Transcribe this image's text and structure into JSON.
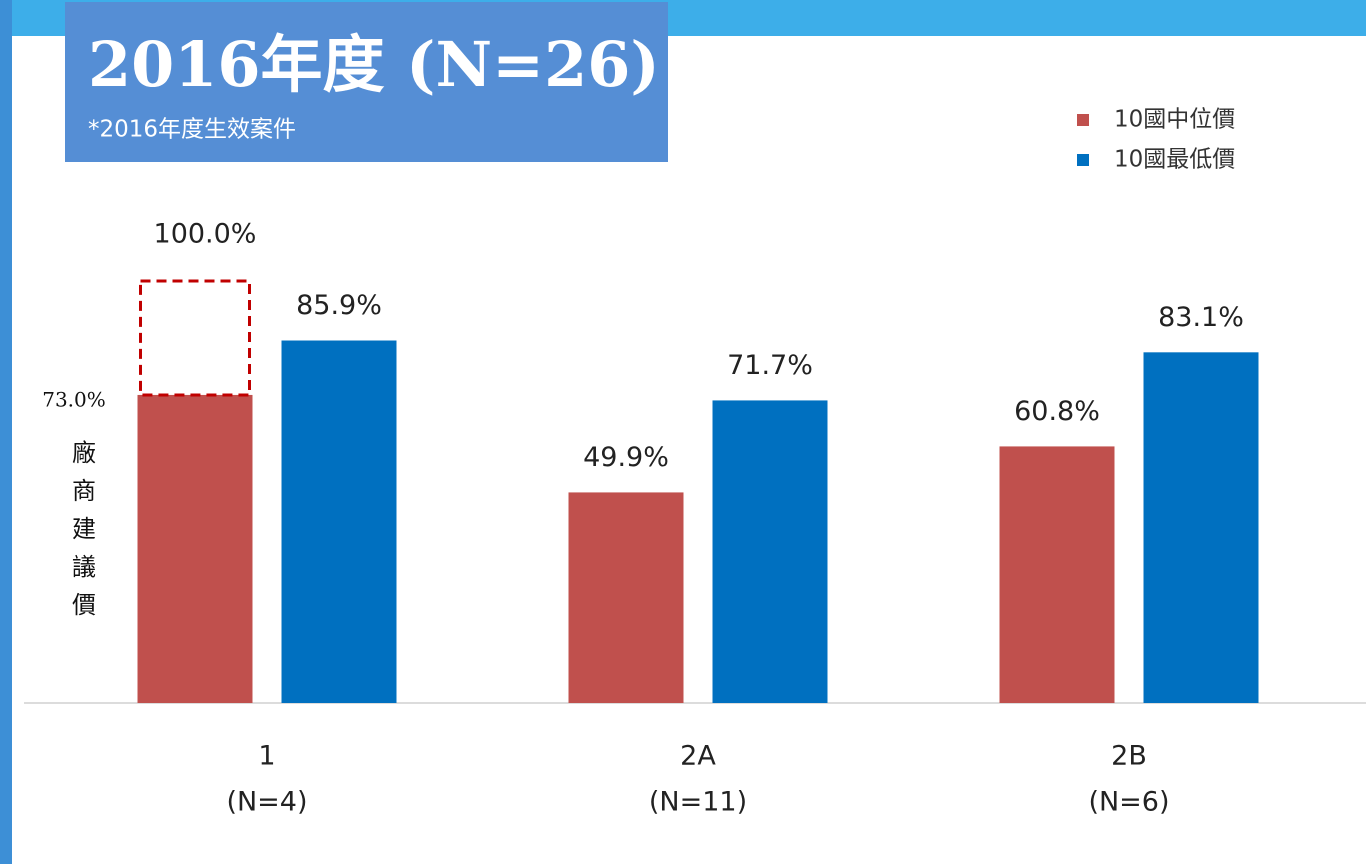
{
  "chart_data": {
    "type": "bar",
    "title": "2016年度 (N=26)",
    "subtitle": "*2016年度生效案件",
    "categories": [
      "1",
      "2A",
      "2B"
    ],
    "category_counts": [
      "(N=4)",
      "(N=11)",
      "(N=6)"
    ],
    "series": [
      {
        "name": "10國中位價",
        "color": "#c0504d",
        "values": [
          73.0,
          49.9,
          60.8
        ],
        "value_labels": [
          "73.0%",
          "49.9%",
          "60.8%"
        ]
      },
      {
        "name": "10國最低價",
        "color": "#0070c0",
        "values": [
          85.9,
          71.7,
          83.1
        ],
        "value_labels": [
          "85.9%",
          "71.7%",
          "83.1%"
        ]
      }
    ],
    "reference": {
      "value": 100,
      "label": "100.0%",
      "text": "廠商建議價",
      "color": "#c00000"
    },
    "legend": "top-right"
  }
}
